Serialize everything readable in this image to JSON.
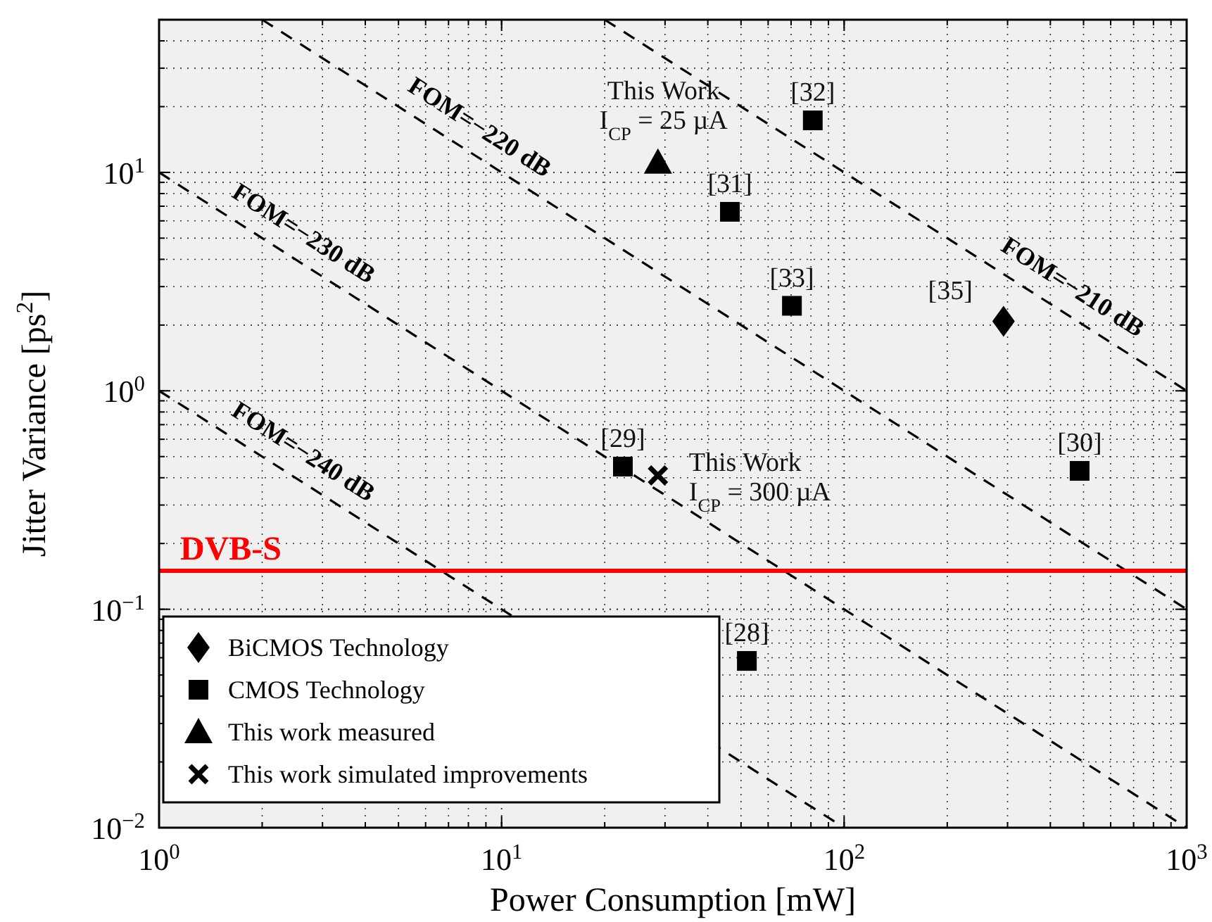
{
  "chart_data": {
    "type": "scatter",
    "xlabel": "Power Consumption [mW]",
    "ylabel": "Jitter Variance [ps$^{2}$]",
    "log": "xy",
    "grid": true,
    "legend": "bottom left",
    "xlim": [
      1,
      1000
    ],
    "xticks": [
      {
        "value": 1,
        "label": "10$^{0}$"
      },
      {
        "value": 10,
        "label": "10$^{1}$"
      },
      {
        "value": 100,
        "label": "10$^{2}$"
      },
      {
        "value": 1000,
        "label": "10$^{3}$"
      }
    ],
    "ylim": [
      0.01,
      50
    ],
    "yticks": [
      {
        "value": 0.01,
        "label": "10$^{−2}$"
      },
      {
        "value": 0.1,
        "label": "10$^{−1}$"
      },
      {
        "value": 1,
        "label": "10$^{0}$"
      },
      {
        "value": 10,
        "label": "10$^{1}$"
      }
    ],
    "series": [
      {
        "name": "BiCMOS Technology",
        "marker": "diamond",
        "color": "#000000",
        "x": [
          292
        ],
        "values": [
          2.08
        ]
      },
      {
        "name": "CMOS Technology",
        "marker": "square",
        "color": "#000000",
        "x": [
          81,
          46.4,
          70.4,
          22.6,
          487,
          52
        ],
        "values": [
          17.3,
          6.6,
          2.45,
          0.45,
          0.43,
          0.058
        ]
      },
      {
        "name": "This work measured",
        "marker": "triangle",
        "color": "#000000",
        "x": [
          28.6
        ],
        "values": [
          11.1
        ]
      },
      {
        "name": "This work simulated improvements",
        "marker": "cross",
        "color": "#000000",
        "x": [
          28.6
        ],
        "values": [
          0.41
        ]
      },
      {
        "name": "FOM=−210 dB",
        "type": "line",
        "marker": "none",
        "line_style": "dashed",
        "color": "#000000",
        "x": [
          20,
          1000
        ],
        "values": [
          50,
          1
        ]
      },
      {
        "name": "FOM=−220 dB",
        "type": "line",
        "marker": "none",
        "line_style": "dashed",
        "color": "#000000",
        "x": [
          2,
          1000
        ],
        "values": [
          50,
          0.1
        ]
      },
      {
        "name": "FOM=−230 dB",
        "type": "line",
        "marker": "none",
        "line_style": "dashed",
        "color": "#000000",
        "x": [
          1,
          1000
        ],
        "values": [
          10,
          0.01
        ]
      },
      {
        "name": "FOM=−240 dB",
        "type": "line",
        "marker": "none",
        "line_style": "dashed",
        "color": "#000000",
        "x": [
          1,
          100
        ],
        "values": [
          1,
          0.01
        ]
      }
    ],
    "ref_lines": [
      {
        "axis": "y",
        "value": 0.15,
        "label": "DVB-S",
        "color": "#ff0000"
      }
    ],
    "annotations": [
      {
        "text": "[32]",
        "x": 81,
        "y": 17.3
      },
      {
        "text": "[31]",
        "x": 46.4,
        "y": 6.6
      },
      {
        "text": "[33]",
        "x": 70.4,
        "y": 2.45
      },
      {
        "text": "[35]",
        "x": 292,
        "y": 2.08
      },
      {
        "text": "[29]",
        "x": 22.6,
        "y": 0.45
      },
      {
        "text": "[30]",
        "x": 487,
        "y": 0.43
      },
      {
        "text": "[28]",
        "x": 52,
        "y": 0.058
      },
      {
        "text": "This Work\nI$_{CP}$ = 25 µA",
        "x": 28.6,
        "y": 11.1
      },
      {
        "text": "This Work\nI$_{CP}$ = 300 µA",
        "x": 28.6,
        "y": 0.41
      }
    ]
  }
}
